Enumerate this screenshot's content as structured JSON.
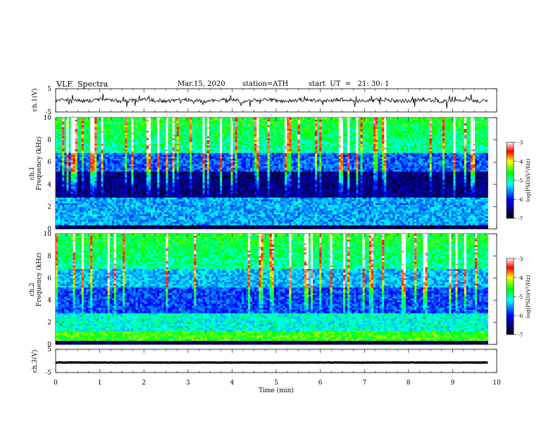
{
  "header": {
    "title": "VLF  Spectra",
    "date": "Mar.15, 2020",
    "station": "station=ATH",
    "start_ut": "start  UT  =   21: 30: 1"
  },
  "chart_data": [
    {
      "type": "line",
      "panel": "ch1-waveform",
      "ylabel": "ch.1(V)",
      "ylim": [
        -5,
        5
      ],
      "y_ticks": [
        "5",
        "-5"
      ],
      "x_range_min": [
        0,
        9.8
      ],
      "level_v": 0
    },
    {
      "type": "heatmap",
      "panel": "ch1-spectrogram",
      "ylabel": "Frequency  (kHz)",
      "channel_label": "ch.1",
      "ylim": [
        0,
        10
      ],
      "y_ticks": [
        "0",
        "2",
        "4",
        "6",
        "8",
        "10"
      ],
      "x_range_min": [
        0,
        9.8
      ],
      "colorbar": {
        "label": "log(PSD)(V²/Hz)",
        "ticks": [
          "-3",
          "-4",
          "-5",
          "-6",
          "-7"
        ],
        "range": [
          -7,
          -3
        ]
      }
    },
    {
      "type": "heatmap",
      "panel": "ch2-spectrogram",
      "ylabel": "Frequency  (kHz)",
      "channel_label": "ch.2",
      "ylim": [
        0,
        10
      ],
      "y_ticks": [
        "0",
        "2",
        "4",
        "6",
        "8",
        "10"
      ],
      "x_range_min": [
        0,
        9.8
      ],
      "colorbar": {
        "label": "log(PSD)(V²/Hz)",
        "ticks": [
          "-3",
          "-4",
          "-5",
          "-6",
          "-7"
        ],
        "range": [
          -7,
          -3
        ]
      }
    },
    {
      "type": "line",
      "panel": "ch3-waveform",
      "ylabel": "ch.3(V)",
      "ylim": [
        -5,
        5
      ],
      "y_ticks": [
        "5",
        "-5"
      ],
      "x_range_min": [
        0,
        9.8
      ],
      "level_v": -0.7
    }
  ],
  "x_axis": {
    "label": "Time  (min)",
    "ticks": [
      "0",
      "1",
      "2",
      "3",
      "4",
      "5",
      "6",
      "7",
      "8",
      "9",
      "10"
    ],
    "range": [
      0,
      10
    ]
  }
}
